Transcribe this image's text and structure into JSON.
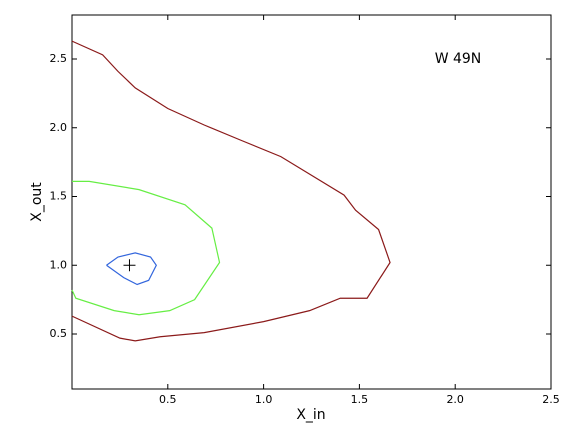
{
  "chart_data": {
    "type": "line",
    "xlabel": "X_in",
    "ylabel": "X_out",
    "annotation": "W 49N",
    "xlim": [
      0,
      2.5
    ],
    "ylim": [
      0.1,
      2.82
    ],
    "xticks": [
      0.5,
      {
        "value": 1,
        "label": "1.0"
      },
      1.5,
      {
        "value": 2,
        "label": "2.0"
      },
      2.5
    ],
    "yticks": [
      0.5,
      {
        "value": 1,
        "label": "1.0"
      },
      1.5,
      {
        "value": 2,
        "label": "2.0"
      },
      2.5
    ],
    "series": [
      {
        "color": "#8b1a1a",
        "x": [
          0,
          0.16,
          0.24,
          0.33,
          0.5,
          0.69,
          0.88,
          1.09,
          1.42,
          1.48,
          1.6,
          1.66,
          1.54,
          1.4,
          1.24,
          1.0,
          0.69,
          0.46,
          0.33,
          0.25,
          0
        ],
        "values": [
          2.63,
          2.53,
          2.41,
          2.29,
          2.14,
          2.02,
          1.91,
          1.79,
          1.51,
          1.4,
          1.26,
          1.02,
          0.76,
          0.76,
          0.67,
          0.59,
          0.51,
          0.48,
          0.45,
          0.47,
          0.63
        ]
      },
      {
        "color": "#66ee44",
        "x": [
          0,
          0.09,
          0.35,
          0.59,
          0.73,
          0.77,
          0.64,
          0.51,
          0.35,
          0.22,
          0.02,
          0
        ],
        "values": [
          1.61,
          1.61,
          1.55,
          1.44,
          1.27,
          1.02,
          0.75,
          0.67,
          0.64,
          0.67,
          0.76,
          0.82
        ]
      },
      {
        "color": "#3366dd",
        "x": [
          0.18,
          0.24,
          0.33,
          0.41,
          0.44,
          0.4,
          0.34,
          0.27,
          0.18
        ],
        "values": [
          1.0,
          1.06,
          1.09,
          1.06,
          1.0,
          0.89,
          0.86,
          0.91,
          1.0
        ]
      }
    ],
    "marker": {
      "x": 0.3,
      "y": 1.0,
      "color": "#000000"
    }
  }
}
